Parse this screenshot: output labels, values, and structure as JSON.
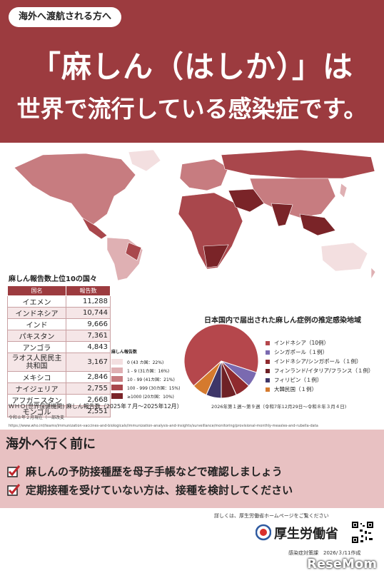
{
  "header": {
    "pill": "海外へ渡航される方へ",
    "line1": "「麻しん（はしか）」は",
    "line2": "世界で流行している感染症です。"
  },
  "table": {
    "title": "麻しん報告数上位10の国々",
    "col_country": "国名",
    "col_count": "報告数",
    "rows": [
      {
        "country": "イエメン",
        "count": "11,288"
      },
      {
        "country": "インドネシア",
        "count": "10,744"
      },
      {
        "country": "インド",
        "count": "9,666"
      },
      {
        "country": "パキスタン",
        "count": "7,361"
      },
      {
        "country": "アンゴラ",
        "count": "4,843"
      },
      {
        "country": "ラオス人民民主共和国",
        "count": "3,167"
      },
      {
        "country": "メキシコ",
        "count": "2,846"
      },
      {
        "country": "ナイジェリア",
        "count": "2,755"
      },
      {
        "country": "アフガニスタン",
        "count": "2,668"
      },
      {
        "country": "モンゴル",
        "count": "2,551"
      }
    ]
  },
  "map_legend": {
    "title": "麻しん報告数",
    "items": [
      {
        "label": "0 (43 カ国：22%)",
        "color": "#f3dfe0"
      },
      {
        "label": "1 - 9 (31カ国：16%)",
        "color": "#dfb0b3"
      },
      {
        "label": "10 - 99 (41カ国：21%)",
        "color": "#c77c80"
      },
      {
        "label": "100 - 999 (30カ国：15%)",
        "color": "#a9474c"
      },
      {
        "label": "≥1000 (20カ国：10%)",
        "color": "#7a2428"
      }
    ]
  },
  "notes": {
    "who": "ＷＨＯ(世界保健機関) 麻しん報告数（2025年７月～2025年12月）",
    "date": "令和８年２月現在（一部改変",
    "url": "https://www.who.int/teams/immunization-vaccines-and-biologicals/immunization-analysis-and-insights/surveillance/monitoring/provisional-monthly-measles-and-rubella-data"
  },
  "pie": {
    "title": "日本国内で届出された麻しん症例の推定感染地域",
    "period": "2026年第１週～第９週（令和7年12月29日～令和８年３月４日)",
    "slices": [
      {
        "label": "インドネシア（10例）",
        "value": 10,
        "color": "#b5474c"
      },
      {
        "label": "シンガポール（１例）",
        "value": 1,
        "color": "#7a6ab0"
      },
      {
        "label": "インドネシア/シンガポール（１例）",
        "value": 1,
        "color": "#8f2a2e"
      },
      {
        "label": "フィンランド/イタリア/フランス（１例）",
        "value": 1,
        "color": "#6e2126"
      },
      {
        "label": "フィリピン（１例）",
        "value": 1,
        "color": "#3e3668"
      },
      {
        "label": "大韓民国（１例）",
        "value": 1,
        "color": "#d57a2e"
      }
    ]
  },
  "advice": {
    "title": "海外へ行く前に",
    "item1": "麻しんの予防接種歴を母子手帳などで確認しましょう",
    "item2": "定期接種を受けていない方は、接種を検討してください"
  },
  "footer": {
    "detail": "詳しくは、厚生労働省ホームページをご覧ください",
    "ministry": "厚生労働省",
    "issuer": "感染症対策課　2026/３/11作成",
    "brand": "ReseMom"
  },
  "colors": {
    "brand_red": "#9c3b3f",
    "pink_bg": "#e8c1c2"
  }
}
